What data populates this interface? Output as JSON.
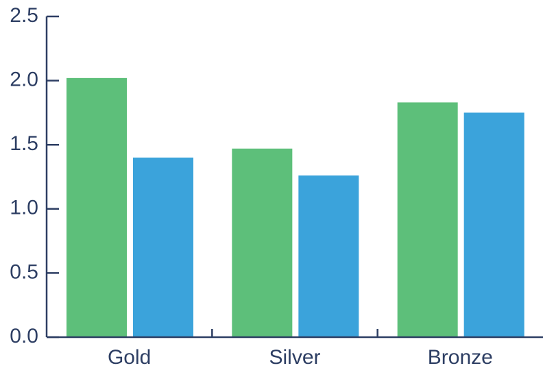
{
  "chart_data": {
    "type": "bar",
    "categories": [
      "Gold",
      "Silver",
      "Bronze"
    ],
    "series": [
      {
        "values": [
          2.02,
          1.47,
          1.83
        ],
        "color": "#5dbf7a"
      },
      {
        "values": [
          1.4,
          1.26,
          1.75
        ],
        "color": "#3ba3db"
      }
    ],
    "title": "",
    "xlabel": "",
    "ylabel": "",
    "ylim": [
      0,
      2.5
    ],
    "yticks": [
      "0.0",
      "0.5",
      "1.0",
      "1.5",
      "2.0",
      "2.5"
    ],
    "grid": false,
    "legend": "none"
  }
}
